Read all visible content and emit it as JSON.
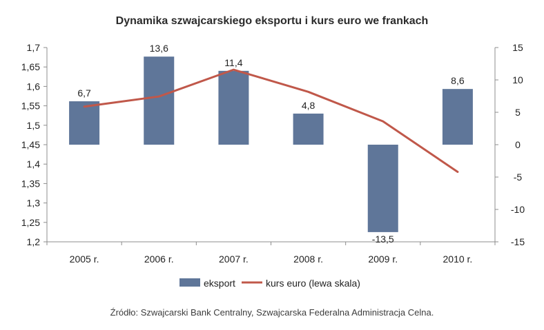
{
  "title": "Dynamika szwajcarskiego eksportu i kurs euro we frankach",
  "source": "Źródło: Szwajcarski Bank Centralny, Szwajcarska Federalna Administracja Celna.",
  "colors": {
    "bar": "#5f7699",
    "line": "#c0584a",
    "axis": "#8c8c8c"
  },
  "chart_data": {
    "type": "bar+line",
    "categories": [
      "2005 r.",
      "2006 r.",
      "2007 r.",
      "2008 r.",
      "2009 r.",
      "2010 r."
    ],
    "series": [
      {
        "name": "eksport",
        "type": "bar",
        "axis": "right",
        "values": [
          6.7,
          13.6,
          11.4,
          4.8,
          -13.5,
          8.6
        ],
        "labels": [
          "6,7",
          "13,6",
          "11,4",
          "4,8",
          "-13,5",
          "8,6"
        ]
      },
      {
        "name": "kurs euro (lewa skala)",
        "type": "line",
        "axis": "left",
        "values": [
          1.548,
          1.574,
          1.643,
          1.586,
          1.51,
          1.38
        ]
      }
    ],
    "left_axis": {
      "ylim": [
        1.2,
        1.7
      ],
      "ticks": [
        "1,2",
        "1,25",
        "1,3",
        "1,35",
        "1,4",
        "1,45",
        "1,5",
        "1,55",
        "1,6",
        "1,65",
        "1,7"
      ]
    },
    "right_axis": {
      "ylim": [
        -15,
        15
      ],
      "ticks": [
        "-15",
        "-10",
        "-5",
        "0",
        "5",
        "10",
        "15"
      ]
    },
    "grid": false,
    "legend_position": "bottom"
  }
}
